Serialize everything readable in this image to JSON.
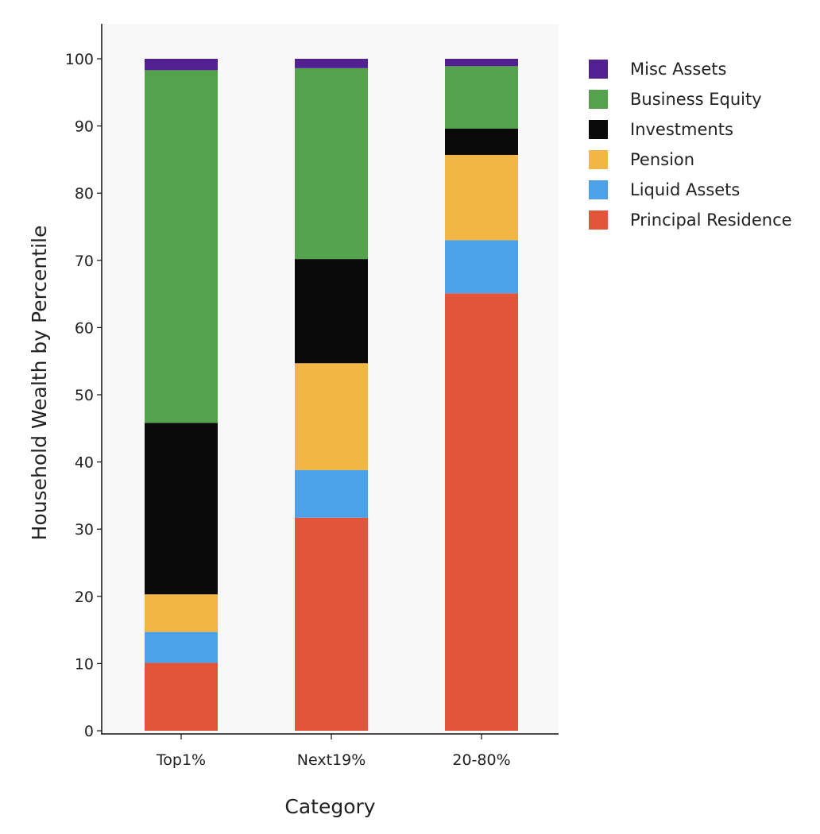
{
  "chart_data": {
    "type": "bar",
    "stacked": true,
    "categories": [
      "Top1%",
      "Next19%",
      "20-80%"
    ],
    "series": [
      {
        "name": "Principal Residence",
        "color": "#e3553a",
        "values": [
          10.1,
          31.7,
          65.1
        ]
      },
      {
        "name": "Liquid Assets",
        "color": "#4ca1e8",
        "values": [
          4.6,
          7.1,
          7.9
        ]
      },
      {
        "name": "Pension",
        "color": "#f1b643",
        "values": [
          5.6,
          15.9,
          12.7
        ]
      },
      {
        "name": "Investments",
        "color": "#0a0a0a",
        "values": [
          25.5,
          15.5,
          3.9
        ]
      },
      {
        "name": "Business Equity",
        "color": "#54a24c",
        "values": [
          52.5,
          28.4,
          9.3
        ]
      },
      {
        "name": "Misc Assets",
        "color": "#522091",
        "values": [
          1.7,
          1.4,
          1.1
        ]
      }
    ],
    "xlabel": "Category",
    "ylabel": "Household Wealth by Percentile",
    "ylim": [
      0,
      105
    ],
    "yticks": [
      0,
      10,
      20,
      30,
      40,
      50,
      60,
      70,
      80,
      90,
      100
    ],
    "grid": false,
    "legend_position": "top-right",
    "legend_order": [
      "Misc Assets",
      "Business Equity",
      "Investments",
      "Pension",
      "Liquid Assets",
      "Principal Residence"
    ],
    "plot_background": "#f8f8f8"
  }
}
